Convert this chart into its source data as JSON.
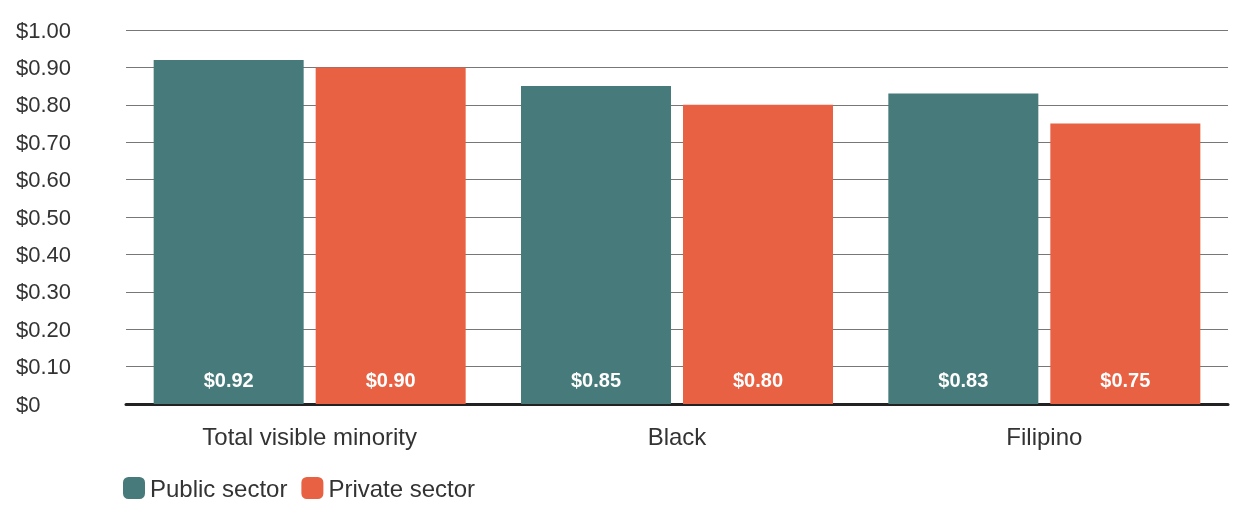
{
  "chart_data": {
    "type": "bar",
    "categories": [
      "Total visible minority",
      "Black",
      "Filipino"
    ],
    "series": [
      {
        "name": "Public sector",
        "color": "#477a7b",
        "values": [
          0.92,
          0.85,
          0.83
        ],
        "value_labels": [
          "$0.92",
          "$0.85",
          "$0.83"
        ]
      },
      {
        "name": "Private sector",
        "color": "#e86143",
        "values": [
          0.9,
          0.8,
          0.75
        ],
        "value_labels": [
          "$0.90",
          "$0.80",
          "$0.75"
        ]
      }
    ],
    "ylim": [
      0,
      1
    ],
    "yticks": [
      {
        "value": 0,
        "label": "$0"
      },
      {
        "value": 0.1,
        "label": "$0.10"
      },
      {
        "value": 0.2,
        "label": "$0.20"
      },
      {
        "value": 0.3,
        "label": "$0.30"
      },
      {
        "value": 0.4,
        "label": "$0.40"
      },
      {
        "value": 0.5,
        "label": "$0.50"
      },
      {
        "value": 0.6,
        "label": "$0.60"
      },
      {
        "value": 0.7,
        "label": "$0.70"
      },
      {
        "value": 0.8,
        "label": "$0.80"
      },
      {
        "value": 0.9,
        "label": "$0.90"
      },
      {
        "value": 1,
        "label": "$1.00"
      }
    ],
    "grid": "y",
    "legend": "bottom left"
  }
}
